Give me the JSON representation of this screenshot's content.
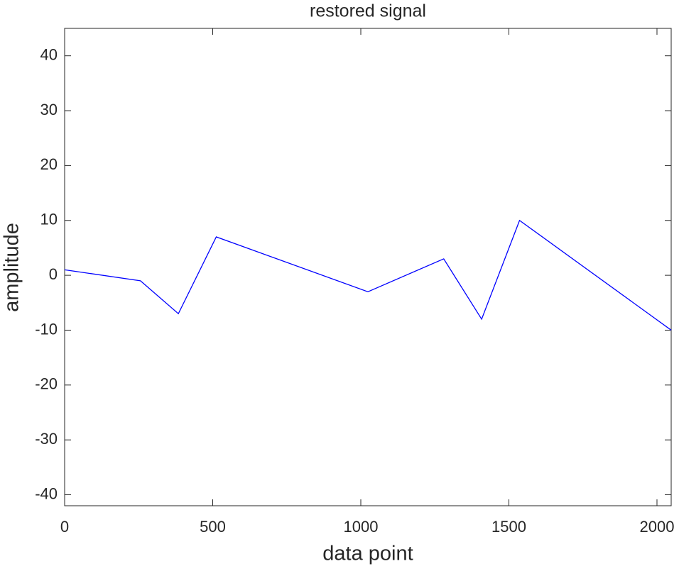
{
  "chart_data": {
    "type": "line",
    "title": "restored signal",
    "x_label": "data point",
    "y_label": "amplitude",
    "x": [
      0,
      256,
      384,
      512,
      1024,
      1280,
      1408,
      1536,
      2048
    ],
    "series": [
      {
        "color": "#0000ff",
        "values": [
          1,
          -1,
          -7,
          7,
          -3,
          3,
          -8,
          10,
          -10
        ]
      }
    ],
    "xlim": [
      0,
      2048
    ],
    "xticks": [
      0,
      500,
      1000,
      1500,
      2000
    ],
    "ylim": [
      -42,
      45
    ],
    "yticks": [
      -40,
      -30,
      -20,
      -10,
      0,
      10,
      20,
      30,
      40
    ],
    "grid": false
  }
}
